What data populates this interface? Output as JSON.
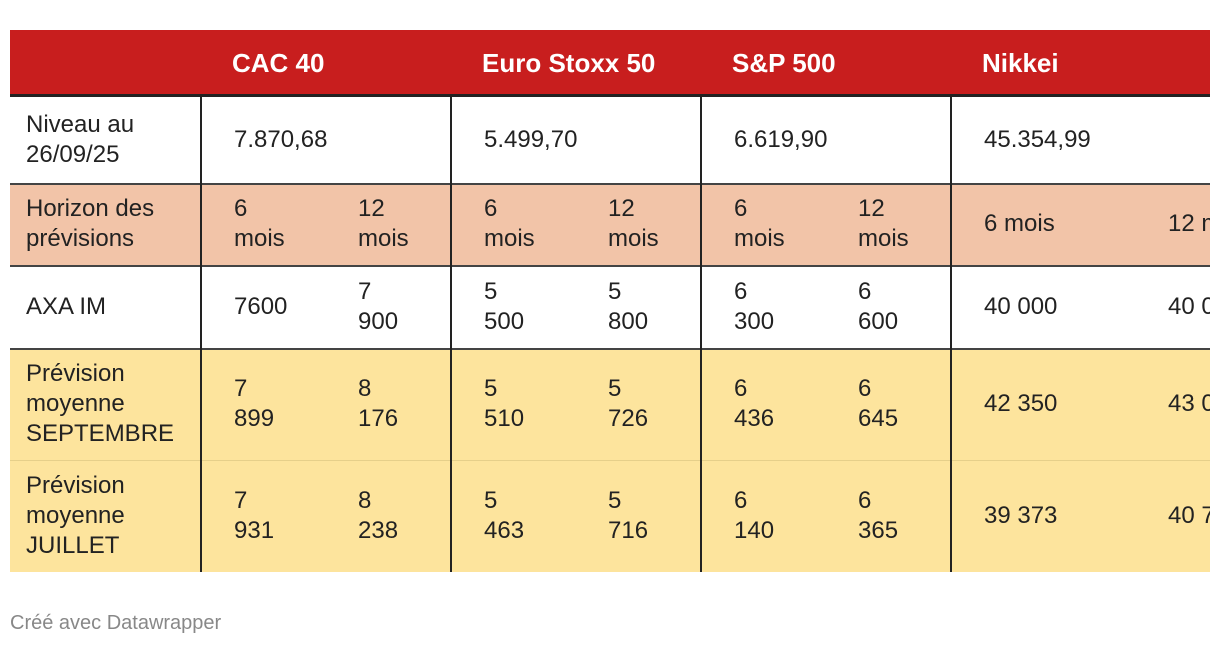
{
  "table": {
    "columns": [
      "CAC 40",
      "Euro Stoxx 50",
      "S&P 500",
      "Nikkei"
    ],
    "rows": [
      {
        "label": "Niveau au 26/09/25",
        "cells": [
          "7.870,68",
          "5.499,70",
          "6.619,90",
          "45.354,99"
        ]
      },
      {
        "label": "Horizon des prévisions",
        "cells": [
          "6 mois",
          "12 mois",
          "6 mois",
          "12 mois",
          "6 mois",
          "12 mois",
          "6 mois",
          "12 m"
        ]
      },
      {
        "label": "AXA IM",
        "cells": [
          "7600",
          "7 900",
          "5 500",
          "5 800",
          "6 300",
          "6 600",
          "40 000",
          "40 0"
        ]
      },
      {
        "label": "Prévision moyenne SEPTEMBRE",
        "cells": [
          "7 899",
          "8 176",
          "5 510",
          "5 726",
          "6 436",
          "6 645",
          "42 350",
          "43 0"
        ]
      },
      {
        "label": "Prévision moyenne JUILLET",
        "cells": [
          "7 931",
          "8 238",
          "5 463",
          "5 716",
          "6 140",
          "6 365",
          "39 373",
          "40 7"
        ]
      }
    ]
  },
  "footer": "Créé avec Datawrapper"
}
